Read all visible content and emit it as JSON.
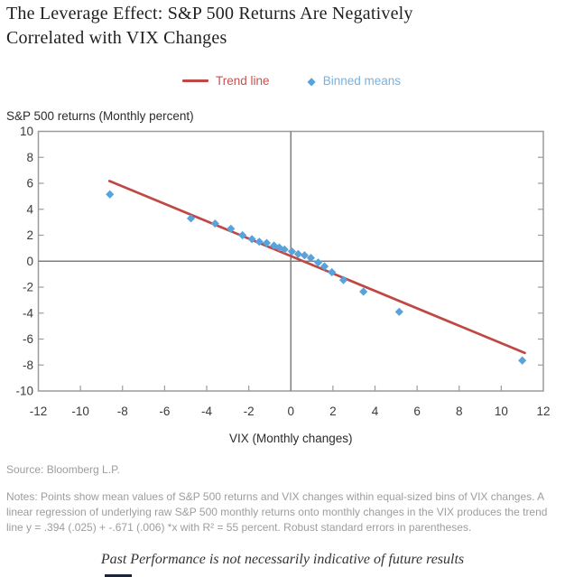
{
  "header": {
    "title": "The Leverage Effect: S&P 500 Returns Are Negatively Correlated with VIX Changes"
  },
  "legend": {
    "items": [
      {
        "label": "Trend line",
        "marker": "line",
        "color": "#c04844",
        "text_color": "#c9504c"
      },
      {
        "label": "Binned means",
        "marker": "diamond",
        "color": "#58a3dc",
        "text_color": "#74b2e2"
      }
    ]
  },
  "chart_data": {
    "type": "scatter",
    "title": "The Leverage Effect: S&P 500 Returns Are Negatively Correlated with VIX Changes",
    "xlabel": "VIX (Monthly changes)",
    "ylabel": "S&P 500 returns (Monthly percent)",
    "xlim": [
      -12,
      12
    ],
    "ylim": [
      -10,
      10
    ],
    "x_ticks": [
      -12,
      -10,
      -8,
      -6,
      -4,
      -2,
      0,
      2,
      4,
      6,
      8,
      10,
      12
    ],
    "y_ticks": [
      -10,
      -8,
      -6,
      -4,
      -2,
      0,
      2,
      4,
      6,
      8,
      10
    ],
    "grid": false,
    "zero_lines": true,
    "legend_position": "top-center",
    "axis_color": "#9b9b9b",
    "zero_line_color": "#7f7f7f",
    "series": [
      {
        "name": "Binned means",
        "type": "scatter",
        "marker": "diamond",
        "color": "#58a3dc",
        "points": [
          [
            -8.6,
            5.15
          ],
          [
            -4.75,
            3.3
          ],
          [
            -3.6,
            2.9
          ],
          [
            -2.85,
            2.5
          ],
          [
            -2.3,
            2.0
          ],
          [
            -1.85,
            1.7
          ],
          [
            -1.5,
            1.5
          ],
          [
            -1.15,
            1.4
          ],
          [
            -0.8,
            1.2
          ],
          [
            -0.55,
            1.05
          ],
          [
            -0.3,
            0.9
          ],
          [
            0.05,
            0.75
          ],
          [
            0.35,
            0.55
          ],
          [
            0.65,
            0.45
          ],
          [
            0.95,
            0.25
          ],
          [
            1.3,
            -0.1
          ],
          [
            1.6,
            -0.4
          ],
          [
            1.95,
            -0.85
          ],
          [
            2.5,
            -1.45
          ],
          [
            3.45,
            -2.35
          ],
          [
            5.15,
            -3.9
          ],
          [
            11.0,
            -7.65
          ]
        ]
      },
      {
        "name": "Trend line",
        "type": "line",
        "color": "#c04844",
        "intercept": 0.394,
        "slope": -0.671,
        "x_range": [
          -8.62,
          11.12
        ],
        "equation": "y = .394 (.025) + -.671 (.006) *x",
        "r_squared": "55 percent"
      }
    ]
  },
  "footer": {
    "source": "Source: Bloomberg L.P.",
    "notes": "Notes: Points show mean values of S&P 500 returns and VIX changes within equal-sized bins of VIX changes. A linear regression of underlying raw S&P 500 monthly returns onto monthly changes in the VIX produces the trend line y = .394 (.025) + -.671 (.006) *x with R² = 55 percent. Robust standard errors in parentheses.",
    "disclaimer": "Past Performance is not necessarily indicative of future results"
  }
}
